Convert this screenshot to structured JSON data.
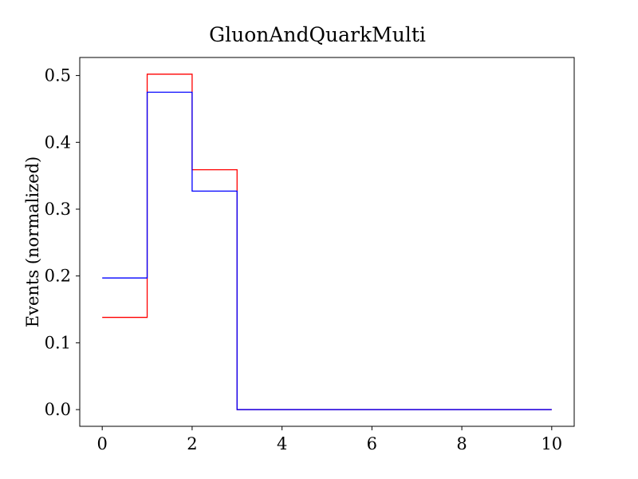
{
  "chart_data": {
    "type": "line",
    "drawstyle": "steps-post",
    "title": "GluonAndQuarkMulti",
    "xlabel": "",
    "ylabel": "Events (normalized)",
    "xlim": [
      -0.5,
      10.5
    ],
    "ylim": [
      -0.025,
      0.527
    ],
    "xticks": [
      0,
      2,
      4,
      6,
      8,
      10
    ],
    "xtick_labels": [
      "0",
      "2",
      "4",
      "6",
      "8",
      "10"
    ],
    "yticks": [
      0.0,
      0.1,
      0.2,
      0.3,
      0.4,
      0.5
    ],
    "ytick_labels": [
      "0.0",
      "0.1",
      "0.2",
      "0.3",
      "0.4",
      "0.5"
    ],
    "grid": false,
    "legend": false,
    "bin_edges": [
      0,
      1,
      2,
      3,
      4,
      5,
      6,
      7,
      8,
      9,
      10
    ],
    "series": [
      {
        "color": "#ff0000",
        "values": [
          0.138,
          0.502,
          0.359,
          0.0,
          0.0,
          0.0,
          0.0,
          0.0,
          0.0,
          0.0
        ]
      },
      {
        "color": "#0000ff",
        "values": [
          0.197,
          0.475,
          0.327,
          0.0,
          0.0,
          0.0,
          0.0,
          0.0,
          0.0,
          0.0
        ]
      }
    ]
  }
}
